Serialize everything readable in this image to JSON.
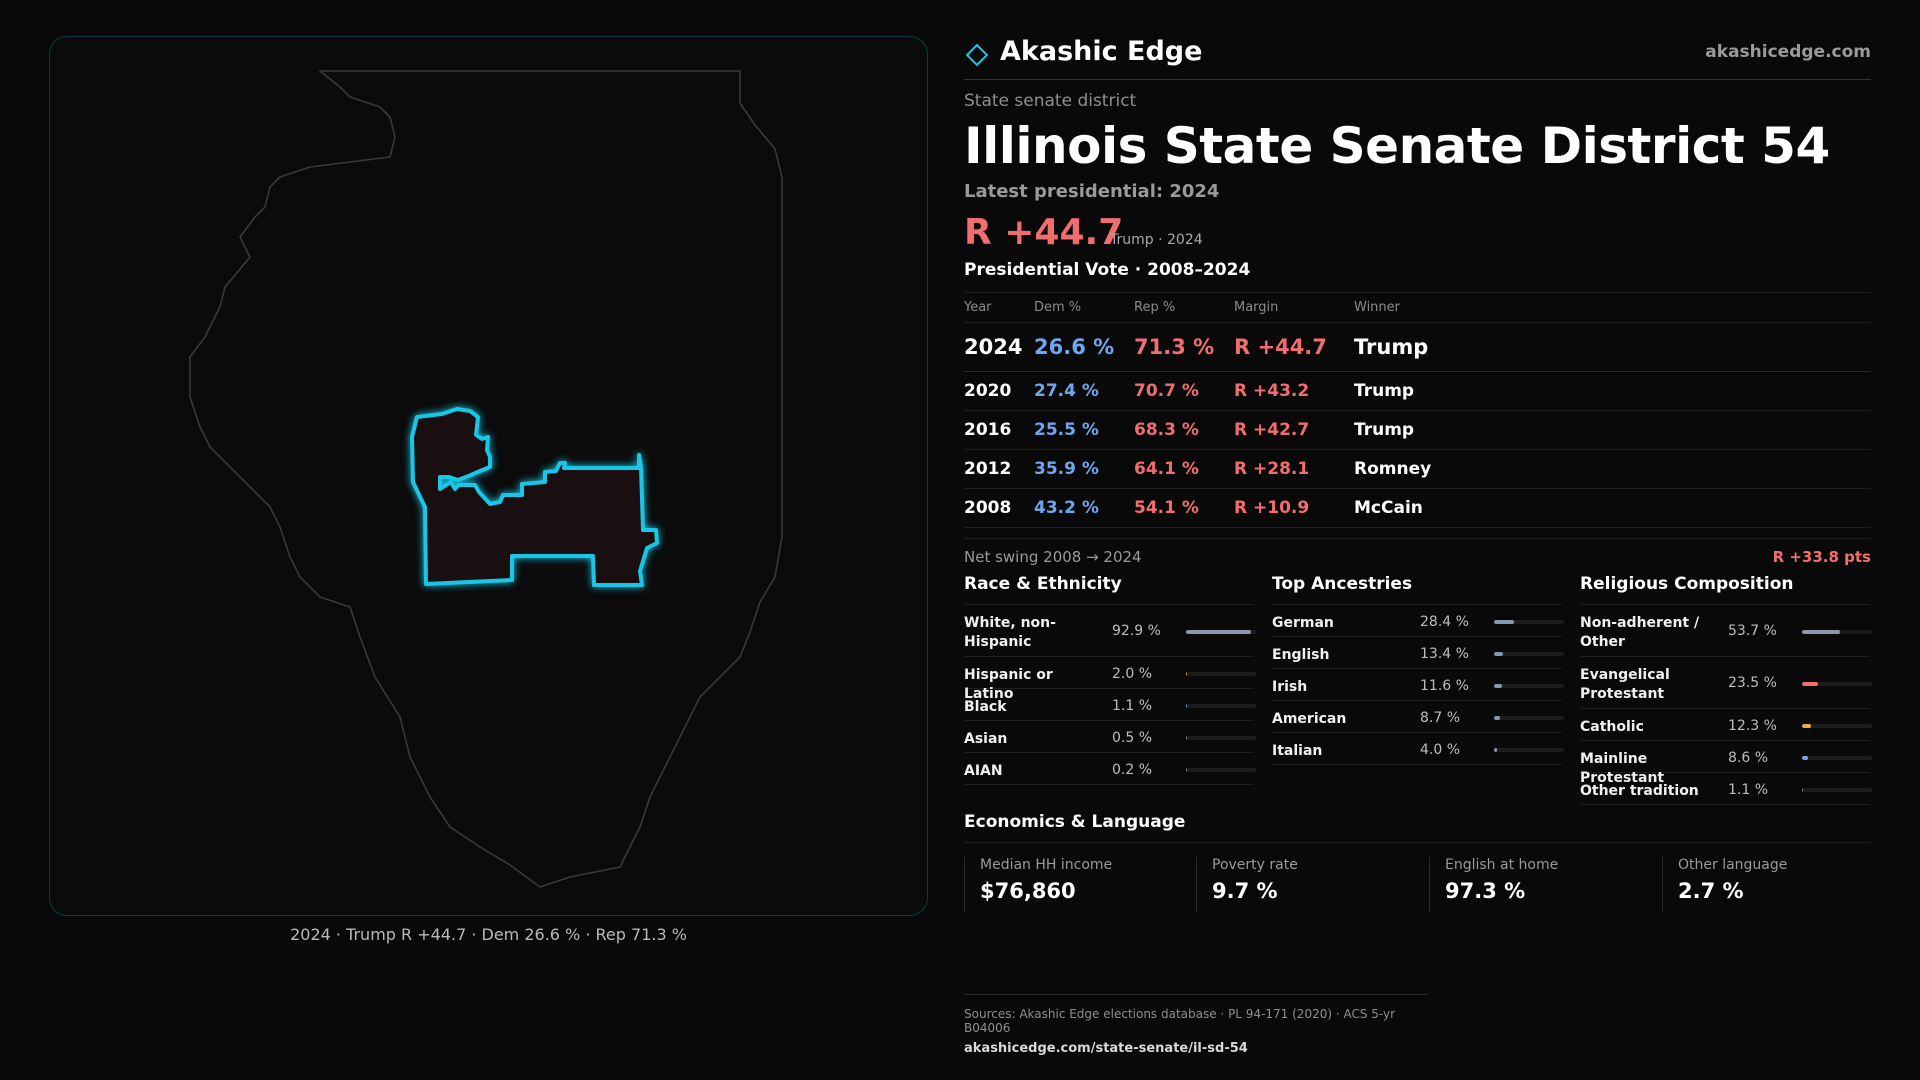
{
  "brand": {
    "name": "Akashic Edge",
    "url": "akashicedge.com"
  },
  "header": {
    "kicker": "State senate district",
    "title": "Illinois State Senate District 54",
    "latest": "Latest presidential: 2024",
    "margin": "R +44.7",
    "margin_note": "Trump · 2024"
  },
  "votes": {
    "title": "Presidential Vote · 2008–2024",
    "columns": [
      "Year",
      "Dem %",
      "Rep %",
      "Margin",
      "Winner"
    ],
    "rows": [
      {
        "year": "2024",
        "dem": "26.6 %",
        "rep": "71.3 %",
        "margin": "R +44.7",
        "winner": "Trump"
      },
      {
        "year": "2020",
        "dem": "27.4 %",
        "rep": "70.7 %",
        "margin": "R +43.2",
        "winner": "Trump"
      },
      {
        "year": "2016",
        "dem": "25.5 %",
        "rep": "68.3 %",
        "margin": "R +42.7",
        "winner": "Trump"
      },
      {
        "year": "2012",
        "dem": "35.9 %",
        "rep": "64.1 %",
        "margin": "R +28.1",
        "winner": "Romney"
      },
      {
        "year": "2008",
        "dem": "43.2 %",
        "rep": "54.1 %",
        "margin": "R +10.9",
        "winner": "McCain"
      }
    ],
    "swing_label": "Net swing 2008 → 2024",
    "swing_value": "R +33.8 pts"
  },
  "race": {
    "title": "Race & Ethnicity",
    "rows": [
      {
        "label": "White, non-Hispanic",
        "value": "92.9 %",
        "frac": 0.929,
        "color": "#8a97a8"
      },
      {
        "label": "Hispanic or Latino",
        "value": "2.0 %",
        "frac": 0.02,
        "color": "#c9a227"
      },
      {
        "label": "Black",
        "value": "1.1 %",
        "frac": 0.011,
        "color": "#6fa6f0"
      },
      {
        "label": "Asian",
        "value": "0.5 %",
        "frac": 0.005,
        "color": "#8a97a8"
      },
      {
        "label": "AIAN",
        "value": "0.2 %",
        "frac": 0.002,
        "color": "#8a97a8"
      }
    ]
  },
  "ancestry": {
    "title": "Top Ancestries",
    "rows": [
      {
        "label": "German",
        "value": "28.4 %",
        "frac": 0.284,
        "color": "#8a97a8"
      },
      {
        "label": "English",
        "value": "13.4 %",
        "frac": 0.134,
        "color": "#8a97a8"
      },
      {
        "label": "Irish",
        "value": "11.6 %",
        "frac": 0.116,
        "color": "#8a97a8"
      },
      {
        "label": "American",
        "value": "8.7 %",
        "frac": 0.087,
        "color": "#8a97a8"
      },
      {
        "label": "Italian",
        "value": "4.0 %",
        "frac": 0.04,
        "color": "#8a97a8"
      }
    ]
  },
  "religion": {
    "title": "Religious Composition",
    "rows": [
      {
        "label": "Non-adherent / Other",
        "value": "53.7 %",
        "frac": 0.537,
        "color": "#8a97a8"
      },
      {
        "label": "Evangelical Protestant",
        "value": "23.5 %",
        "frac": 0.235,
        "color": "#f26d6d"
      },
      {
        "label": "Catholic",
        "value": "12.3 %",
        "frac": 0.123,
        "color": "#e0b43a"
      },
      {
        "label": "Mainline Protestant",
        "value": "8.6 %",
        "frac": 0.086,
        "color": "#6fa6f0"
      },
      {
        "label": "Other tradition",
        "value": "1.1 %",
        "frac": 0.011,
        "color": "#8a97a8"
      }
    ]
  },
  "economics": {
    "title": "Economics & Language",
    "cards": [
      {
        "label": "Median HH income",
        "value": "$76,860"
      },
      {
        "label": "Poverty rate",
        "value": "9.7 %"
      },
      {
        "label": "English at home",
        "value": "97.3 %"
      },
      {
        "label": "Other language",
        "value": "2.7 %"
      }
    ]
  },
  "map": {
    "caption": "2024 · Trump R +44.7 · Dem 26.6 % · Rep 71.3 %",
    "highlight_color": "#19c6e6"
  },
  "sources": {
    "line": "Sources: Akashic Edge elections database · PL 94-171 (2020) · ACS 5-yr B04006",
    "url": "akashicedge.com/state-senate/il-sd-54"
  }
}
